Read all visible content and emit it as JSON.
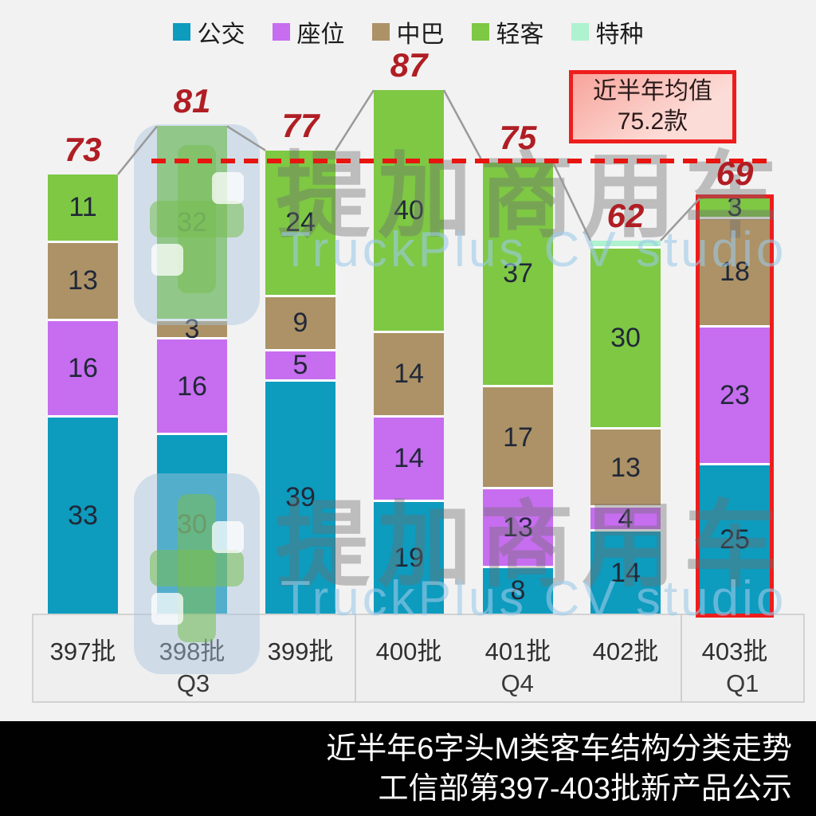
{
  "legend": {
    "items": [
      {
        "label": "公交",
        "color": "#0d9bbe"
      },
      {
        "label": "座位",
        "color": "#c76df0"
      },
      {
        "label": "中巴",
        "color": "#ac9266"
      },
      {
        "label": "轻客",
        "color": "#7ec844"
      },
      {
        "label": "特种",
        "color": "#aef2cf"
      }
    ]
  },
  "chart_data": {
    "type": "bar",
    "stacked": true,
    "categories": [
      "397批",
      "398批",
      "399批",
      "400批",
      "401批",
      "402批",
      "403批"
    ],
    "series": [
      {
        "name": "公交",
        "color": "#0d9bbe",
        "values": [
          33,
          30,
          39,
          19,
          8,
          14,
          25
        ]
      },
      {
        "name": "座位",
        "color": "#c76df0",
        "values": [
          16,
          16,
          5,
          14,
          13,
          4,
          23
        ]
      },
      {
        "name": "中巴",
        "color": "#ac9266",
        "values": [
          13,
          3,
          9,
          14,
          17,
          13,
          18
        ]
      },
      {
        "name": "轻客",
        "color": "#7ec844",
        "values": [
          11,
          32,
          24,
          40,
          37,
          30,
          3
        ]
      },
      {
        "name": "特种",
        "color": "#aef2cf",
        "values": [
          0,
          0,
          0,
          0,
          0,
          1,
          0
        ]
      }
    ],
    "totals": [
      73,
      81,
      77,
      87,
      75,
      62,
      69
    ],
    "average": 75.2,
    "highlight_category": "403批",
    "quarters": [
      {
        "label": "Q3",
        "from": 0,
        "to": 2
      },
      {
        "label": "Q4",
        "from": 3,
        "to": 5
      },
      {
        "label": "Q1",
        "from": 6,
        "to": 6
      }
    ],
    "colors": {
      "total_label": "#b01e24",
      "average_line": "#e8140f",
      "highlight_outline": "#ee1d1d"
    },
    "legend_position": "top",
    "grid": false
  },
  "average_box": {
    "line1": "近半年均值",
    "line2": "75.2款"
  },
  "watermark": {
    "title": "提加商用车",
    "subtitle": "TruckPlus CV studio"
  },
  "footer": {
    "line1": "近半年6字头M类客车结构分类走势",
    "line2": "工信部第397-403批新产品公示"
  }
}
